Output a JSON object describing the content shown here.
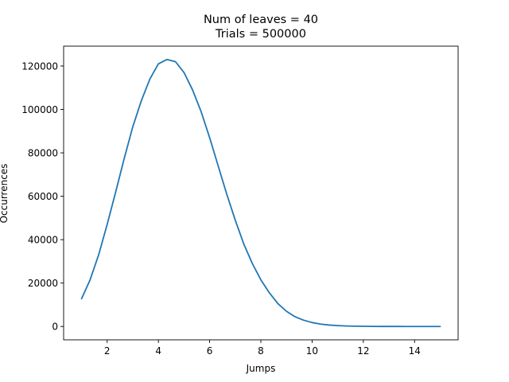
{
  "chart_data": {
    "type": "line",
    "title_lines": [
      "Num of leaves = 40",
      "Trials = 500000"
    ],
    "xlabel": "Jumps",
    "ylabel": "Occurrences",
    "xlim": [
      0.3,
      15.7
    ],
    "ylim": [
      -6150,
      129150
    ],
    "xticks": [
      2,
      4,
      6,
      8,
      10,
      12,
      14
    ],
    "xtick_labels": [
      "2",
      "4",
      "6",
      "8",
      "10",
      "12",
      "14"
    ],
    "yticks": [
      0,
      20000,
      40000,
      60000,
      80000,
      100000,
      120000
    ],
    "ytick_labels": [
      "0",
      "20000",
      "40000",
      "60000",
      "80000",
      "100000",
      "120000"
    ],
    "grid": false,
    "series": [
      {
        "color": "#1f77b4",
        "x": [
          1.0,
          1.333,
          1.667,
          2.0,
          2.333,
          2.667,
          3.0,
          3.333,
          3.667,
          4.0,
          4.333,
          4.667,
          5.0,
          5.333,
          5.667,
          6.0,
          6.333,
          6.667,
          7.0,
          7.333,
          7.667,
          8.0,
          8.333,
          8.667,
          9.0,
          9.333,
          9.667,
          10.0,
          10.333,
          10.667,
          11.0,
          11.333,
          11.667,
          12.0,
          12.333,
          12.667,
          13.0,
          13.333,
          13.667,
          14.0,
          14.333,
          14.667,
          15.0
        ],
        "y": [
          12800,
          21500,
          33000,
          47000,
          62000,
          77500,
          92000,
          104000,
          114000,
          121000,
          123000,
          122000,
          117000,
          109000,
          99000,
          87000,
          74000,
          61000,
          49000,
          38000,
          29000,
          21500,
          15500,
          10500,
          7000,
          4500,
          2900,
          1800,
          1100,
          650,
          400,
          230,
          130,
          80,
          40,
          20,
          10,
          5,
          3,
          2,
          1,
          0,
          0
        ]
      }
    ]
  }
}
